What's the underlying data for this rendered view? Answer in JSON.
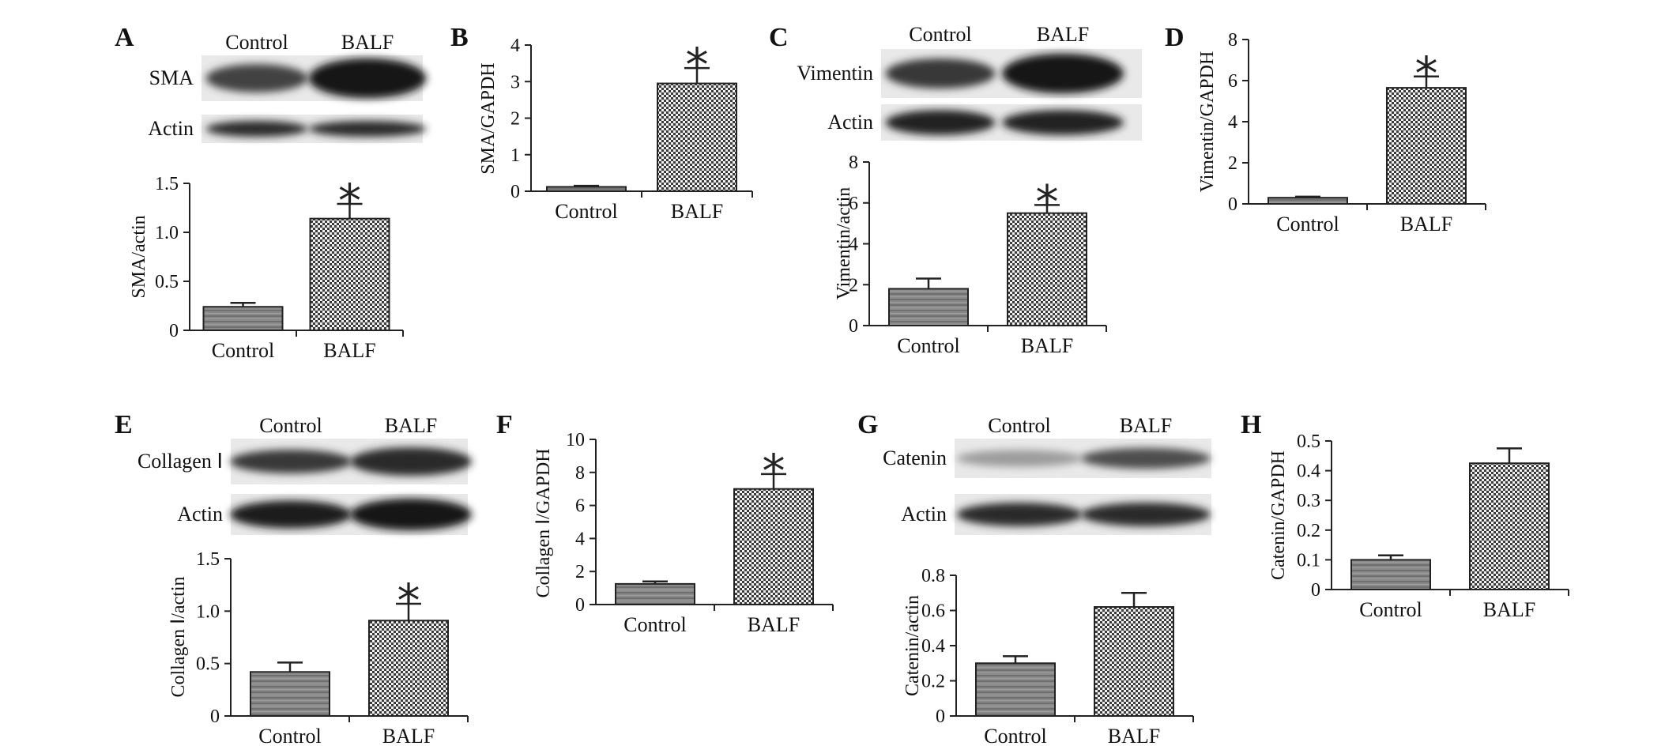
{
  "panels": [
    {
      "letter": "A",
      "blot": {
        "lanes": [
          "Control",
          "BALF"
        ],
        "rows": [
          {
            "label": "SMA",
            "intensity": [
              0.75,
              0.95
            ],
            "bandHeight": [
              0.55,
              0.8
            ]
          },
          {
            "label": "Actin",
            "intensity": [
              0.85,
              0.85
            ],
            "bandHeight": [
              0.45,
              0.45
            ]
          }
        ]
      }
    },
    {
      "letter": "C",
      "blot": {
        "lanes": [
          "Control",
          "BALF"
        ],
        "rows": [
          {
            "label": "Vimentin",
            "intensity": [
              0.8,
              0.95
            ],
            "bandHeight": [
              0.55,
              0.75
            ]
          },
          {
            "label": "Actin",
            "intensity": [
              0.9,
              0.9
            ],
            "bandHeight": [
              0.6,
              0.6
            ]
          }
        ]
      }
    },
    {
      "letter": "E",
      "blot": {
        "lanes": [
          "Control",
          "BALF"
        ],
        "rows": [
          {
            "label": "Collagen Ⅰ",
            "intensity": [
              0.8,
              0.85
            ],
            "bandHeight": [
              0.45,
              0.55
            ]
          },
          {
            "label": "Actin",
            "intensity": [
              0.92,
              0.95
            ],
            "bandHeight": [
              0.6,
              0.7
            ]
          }
        ]
      }
    },
    {
      "letter": "G",
      "blot": {
        "lanes": [
          "Control",
          "BALF"
        ],
        "rows": [
          {
            "label": "Catenin",
            "intensity": [
              0.35,
              0.7
            ],
            "bandHeight": [
              0.35,
              0.45
            ]
          },
          {
            "label": "Actin",
            "intensity": [
              0.85,
              0.85
            ],
            "bandHeight": [
              0.5,
              0.5
            ]
          }
        ]
      }
    },
    {
      "letter": "B"
    },
    {
      "letter": "D"
    },
    {
      "letter": "F"
    },
    {
      "letter": "H"
    }
  ],
  "chart_data": [
    {
      "panel": "A",
      "type": "bar",
      "categories": [
        "Control",
        "BALF"
      ],
      "values": [
        0.24,
        1.14
      ],
      "errors": [
        0.04,
        0.15
      ],
      "ylabel": "SMA/actin",
      "ylim": [
        0,
        1.5
      ],
      "yticks": [
        0,
        0.5,
        1.0,
        1.5
      ],
      "ytick_labels": [
        "0",
        "0.5",
        "1.0",
        "1.5"
      ],
      "annotations": [
        {
          "text": "*",
          "category": "BALF"
        }
      ]
    },
    {
      "panel": "B",
      "type": "bar",
      "categories": [
        "Control",
        "BALF"
      ],
      "values": [
        0.12,
        2.95
      ],
      "errors": [
        0.03,
        0.42
      ],
      "ylabel": "SMA/GAPDH",
      "ylim": [
        0,
        4
      ],
      "yticks": [
        0,
        1,
        2,
        3,
        4
      ],
      "ytick_labels": [
        "0",
        "1",
        "2",
        "3",
        "4"
      ],
      "annotations": [
        {
          "text": "*",
          "category": "BALF"
        }
      ]
    },
    {
      "panel": "C",
      "type": "bar",
      "categories": [
        "Control",
        "BALF"
      ],
      "values": [
        1.8,
        5.5
      ],
      "errors": [
        0.5,
        0.4
      ],
      "ylabel": "Vimentin/actin",
      "ylim": [
        0,
        8
      ],
      "yticks": [
        0,
        2,
        4,
        6,
        8
      ],
      "ytick_labels": [
        "0",
        "2",
        "4",
        "6",
        "8"
      ],
      "annotations": [
        {
          "text": "*",
          "category": "BALF"
        }
      ]
    },
    {
      "panel": "D",
      "type": "bar",
      "categories": [
        "Control",
        "BALF"
      ],
      "values": [
        0.3,
        5.65
      ],
      "errors": [
        0.05,
        0.55
      ],
      "ylabel": "Vimentin/GAPDH",
      "ylim": [
        0,
        8
      ],
      "yticks": [
        0,
        2,
        4,
        6,
        8
      ],
      "ytick_labels": [
        "0",
        "2",
        "4",
        "6",
        "8"
      ],
      "annotations": [
        {
          "text": "*",
          "category": "BALF"
        }
      ]
    },
    {
      "panel": "E",
      "type": "bar",
      "categories": [
        "Control",
        "BALF"
      ],
      "values": [
        0.42,
        0.91
      ],
      "errors": [
        0.09,
        0.16
      ],
      "ylabel": "Collagen Ⅰ/actin",
      "ylim": [
        0,
        1.5
      ],
      "yticks": [
        0,
        0.5,
        1.0,
        1.5
      ],
      "ytick_labels": [
        "0",
        "0.5",
        "1.0",
        "1.5"
      ],
      "annotations": [
        {
          "text": "*",
          "category": "BALF"
        }
      ]
    },
    {
      "panel": "F",
      "type": "bar",
      "categories": [
        "Control",
        "BALF"
      ],
      "values": [
        1.25,
        7.0
      ],
      "errors": [
        0.15,
        0.9
      ],
      "ylabel": "Collagen Ⅰ/GAPDH",
      "ylim": [
        0,
        10
      ],
      "yticks": [
        0,
        2,
        4,
        6,
        8,
        10
      ],
      "ytick_labels": [
        "0",
        "2",
        "4",
        "6",
        "8",
        "10"
      ],
      "annotations": [
        {
          "text": "*",
          "category": "BALF"
        }
      ]
    },
    {
      "panel": "G",
      "type": "bar",
      "categories": [
        "Control",
        "BALF"
      ],
      "values": [
        0.3,
        0.62
      ],
      "errors": [
        0.04,
        0.08
      ],
      "ylabel": "Catenin/actin",
      "ylim": [
        0,
        0.8
      ],
      "yticks": [
        0,
        0.2,
        0.4,
        0.6,
        0.8
      ],
      "ytick_labels": [
        "0",
        "0.2",
        "0.4",
        "0.6",
        "0.8"
      ],
      "annotations": []
    },
    {
      "panel": "H",
      "type": "bar",
      "categories": [
        "Control",
        "BALF"
      ],
      "values": [
        0.1,
        0.425
      ],
      "errors": [
        0.015,
        0.05
      ],
      "ylabel": "Catenin/GAPDH",
      "ylim": [
        0,
        0.5
      ],
      "yticks": [
        0,
        0.1,
        0.2,
        0.3,
        0.4,
        0.5
      ],
      "ytick_labels": [
        "0",
        "0.1",
        "0.2",
        "0.3",
        "0.4",
        "0.5"
      ],
      "annotations": []
    }
  ]
}
